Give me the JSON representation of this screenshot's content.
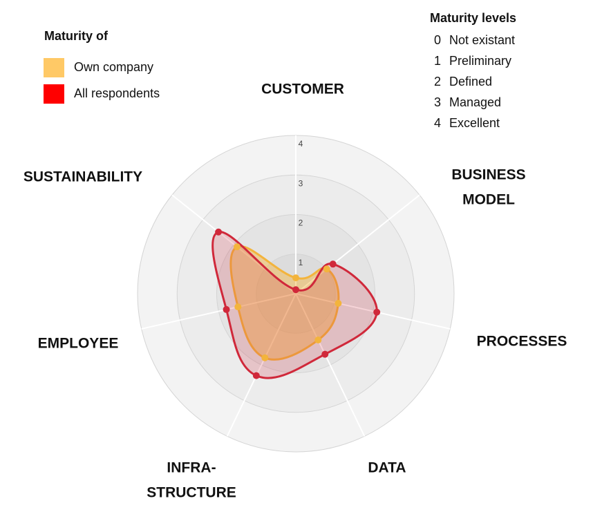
{
  "chart_data": {
    "type": "radar",
    "categories": [
      [
        "CUSTOMER"
      ],
      [
        "BUSINESS",
        "MODEL"
      ],
      [
        "PROCESSES"
      ],
      [
        "DATA"
      ],
      [
        "INFRA-",
        "STRUCTURE"
      ],
      [
        "EMPLOYEE"
      ],
      [
        "SUSTAINABILITY"
      ]
    ],
    "rlim": [
      0,
      4
    ],
    "rticks": [
      1,
      2,
      3,
      4
    ],
    "legend_title": "Maturity of",
    "series": [
      {
        "name": "Own company",
        "color": "#f3b43c",
        "swatch": "#ffc966",
        "values": [
          0.4,
          1.0,
          1.1,
          1.3,
          1.8,
          1.5,
          1.9
        ]
      },
      {
        "name": "All respondents",
        "color": "#d0283a",
        "swatch": "#ff0000",
        "values": [
          0.1,
          1.2,
          2.1,
          1.7,
          2.3,
          1.8,
          2.5
        ]
      }
    ],
    "levels_title": "Maturity levels",
    "levels": [
      {
        "value": 0,
        "name": "Not existant"
      },
      {
        "value": 1,
        "name": "Preliminary"
      },
      {
        "value": 2,
        "name": "Defined"
      },
      {
        "value": 3,
        "name": "Managed"
      },
      {
        "value": 4,
        "name": "Excellent"
      }
    ]
  }
}
